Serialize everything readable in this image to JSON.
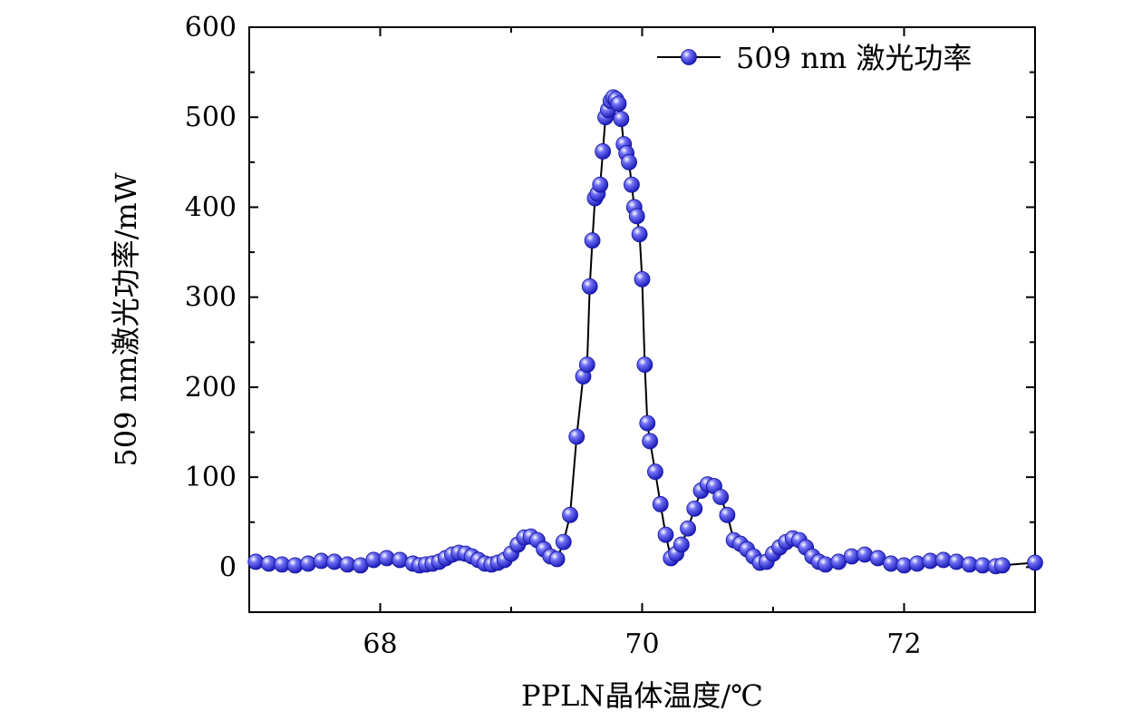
{
  "chart_data": {
    "type": "scatter",
    "xlabel": "PPLN晶体温度/℃",
    "ylabel": "509 nm激光功率/mW",
    "xlim": [
      67,
      73
    ],
    "ylim": [
      -50,
      600
    ],
    "xticks": [
      68,
      70,
      72
    ],
    "yticks": [
      0,
      100,
      200,
      300,
      400,
      500,
      600
    ],
    "grid": false,
    "legend_position": "top-right",
    "marker_color": "#2a2ae0",
    "line_color": "#000000",
    "series": [
      {
        "name": "509 nm 激光功率",
        "x": [
          67.05,
          67.15,
          67.25,
          67.35,
          67.45,
          67.55,
          67.65,
          67.75,
          67.85,
          67.95,
          68.05,
          68.15,
          68.25,
          68.3,
          68.35,
          68.4,
          68.45,
          68.5,
          68.55,
          68.6,
          68.65,
          68.7,
          68.75,
          68.8,
          68.85,
          68.9,
          68.95,
          69.0,
          69.05,
          69.1,
          69.15,
          69.2,
          69.25,
          69.3,
          69.35,
          69.4,
          69.45,
          69.5,
          69.55,
          69.58,
          69.6,
          69.62,
          69.64,
          69.66,
          69.68,
          69.7,
          69.72,
          69.74,
          69.76,
          69.78,
          69.8,
          69.82,
          69.84,
          69.86,
          69.88,
          69.9,
          69.92,
          69.94,
          69.96,
          69.98,
          70.0,
          70.02,
          70.04,
          70.06,
          70.1,
          70.14,
          70.18,
          70.22,
          70.26,
          70.3,
          70.35,
          70.4,
          70.45,
          70.5,
          70.55,
          70.6,
          70.65,
          70.7,
          70.75,
          70.8,
          70.85,
          70.9,
          70.95,
          71.0,
          71.05,
          71.1,
          71.15,
          71.2,
          71.25,
          71.3,
          71.35,
          71.4,
          71.5,
          71.6,
          71.7,
          71.8,
          71.9,
          72.0,
          72.1,
          72.2,
          72.3,
          72.4,
          72.5,
          72.6,
          72.7,
          72.75,
          73.0
        ],
        "values": [
          6,
          4,
          3,
          2,
          4,
          7,
          6,
          3,
          2,
          8,
          10,
          8,
          4,
          2,
          3,
          4,
          6,
          10,
          14,
          16,
          15,
          12,
          8,
          4,
          3,
          5,
          8,
          15,
          25,
          33,
          34,
          30,
          20,
          12,
          9,
          28,
          58,
          145,
          212,
          225,
          312,
          363,
          410,
          415,
          425,
          462,
          500,
          508,
          518,
          522,
          520,
          515,
          498,
          470,
          460,
          450,
          425,
          400,
          390,
          370,
          320,
          225,
          160,
          140,
          106,
          70,
          36,
          10,
          15,
          25,
          43,
          65,
          85,
          92,
          90,
          78,
          58,
          30,
          26,
          20,
          12,
          5,
          6,
          15,
          22,
          28,
          32,
          30,
          22,
          12,
          6,
          3,
          6,
          12,
          14,
          10,
          4,
          2,
          4,
          7,
          8,
          6,
          3,
          2,
          1,
          2,
          5
        ]
      }
    ]
  }
}
